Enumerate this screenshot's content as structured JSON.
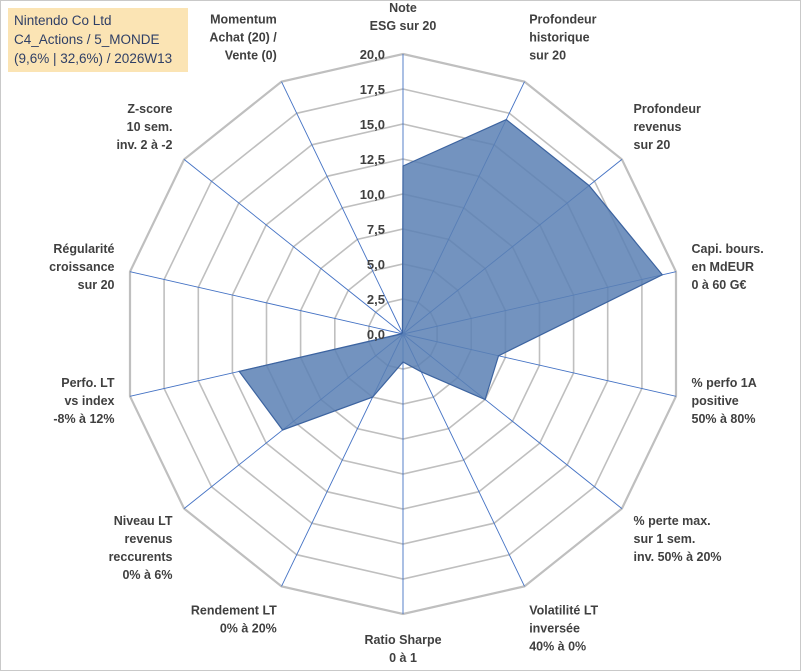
{
  "info": {
    "line1": "Nintendo Co Ltd",
    "line2": "C4_Actions / 5_MONDE",
    "line3": "(9,6% | 32,6%) / 2026W13"
  },
  "colors": {
    "fill": "#5b80b4",
    "stroke": "#3d64a0",
    "grid": "#bfbfbf",
    "spoke": "#4472c4",
    "infobox": "#fbe4b4"
  },
  "chart_data": {
    "type": "radar",
    "title": "",
    "rmin": 0,
    "rmax": 20,
    "tick_labels": [
      "0,0",
      "2,5",
      "5,0",
      "7,5",
      "10,0",
      "12,5",
      "15,0",
      "17,5",
      "20,0"
    ],
    "categories": [
      [
        "Note",
        "ESG sur 20"
      ],
      [
        "Profondeur",
        "historique",
        "sur 20"
      ],
      [
        "Profondeur",
        "revenus",
        "sur 20"
      ],
      [
        "Capi. bours.",
        "en MdEUR",
        "0 à 60 G€"
      ],
      [
        "% perfo 1A",
        "positive",
        "50% à 80%"
      ],
      [
        "% perte max.",
        "sur 1 sem.",
        "inv. 50% à 20%"
      ],
      [
        "Volatilité LT",
        "inversée",
        "40% à 0%"
      ],
      [
        "Ratio Sharpe",
        "0 à 1"
      ],
      [
        "Rendement LT",
        "0% à 20%"
      ],
      [
        "Niveau LT",
        "revenus",
        "reccurents",
        "0% à 6%"
      ],
      [
        "Perfo. LT",
        "vs index",
        "-8% à 12%"
      ],
      [
        "Régularité",
        "croissance",
        "sur 20"
      ],
      [
        "Z-score",
        "10 sem.",
        "inv. 2 à -2"
      ],
      [
        "Momentum",
        "Achat (20) /",
        "Vente (0)"
      ]
    ],
    "series": [
      {
        "name": "Nintendo Co Ltd",
        "values": [
          12.0,
          17.0,
          17.0,
          19.0,
          7.0,
          7.5,
          3.0,
          2.0,
          5.0,
          11.0,
          12.0,
          0.1,
          0.1,
          0.1
        ]
      }
    ]
  }
}
